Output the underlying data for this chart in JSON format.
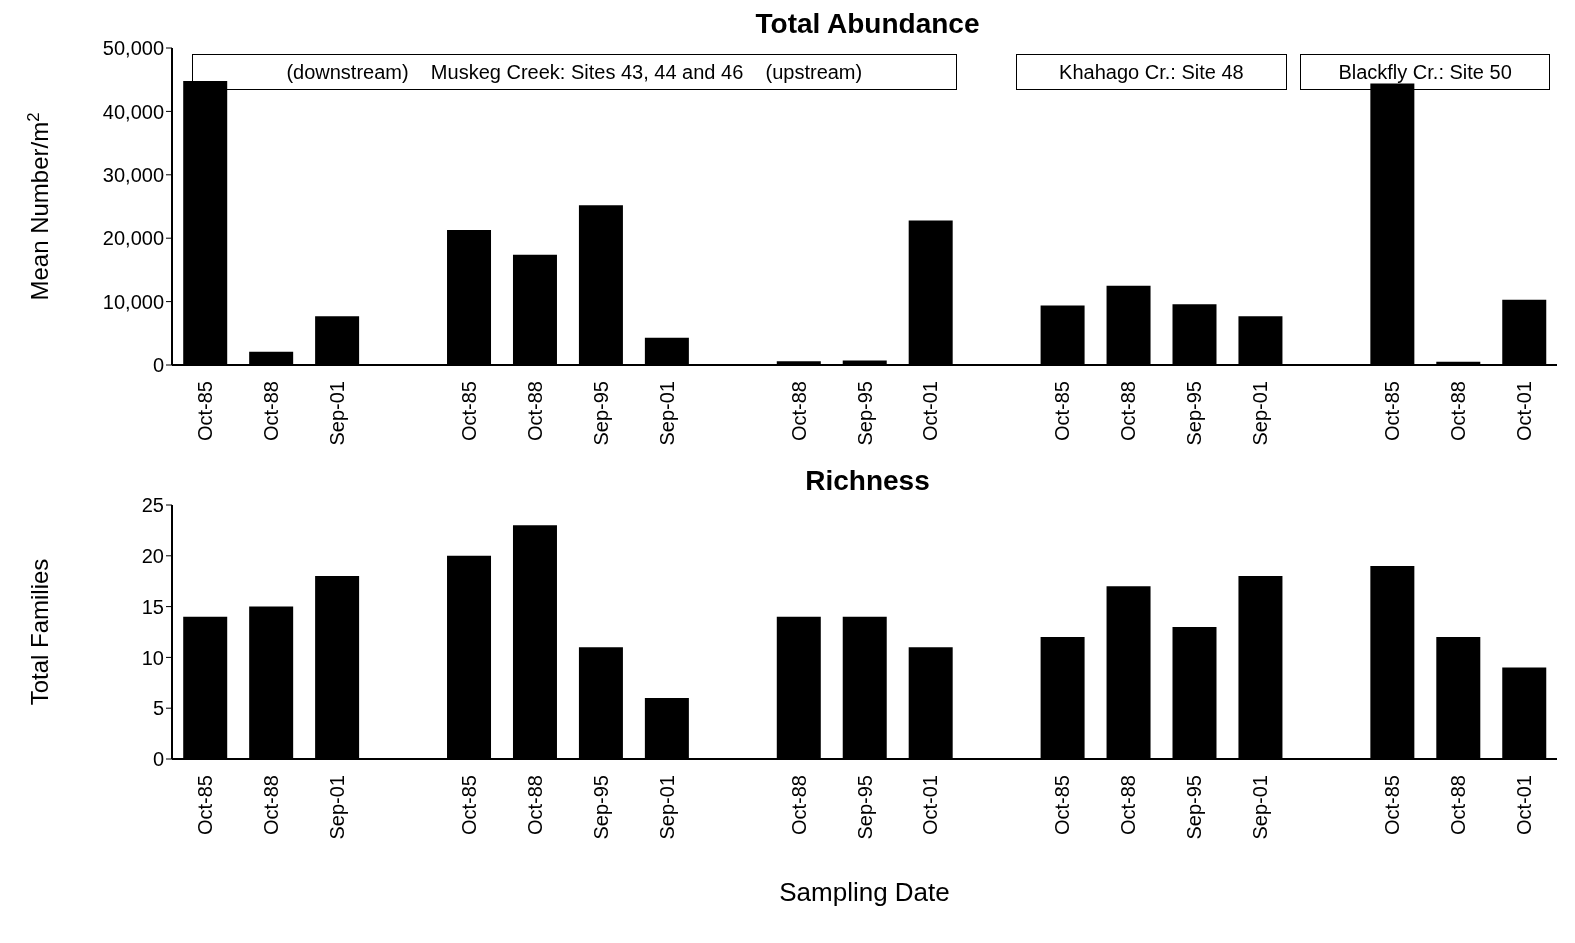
{
  "chart_data": [
    {
      "type": "bar",
      "title": "Total Abundance",
      "ylabel": "Mean Number/m$^{2}$",
      "categories": [
        "Oct-85",
        "Oct-88",
        "Sep-01",
        null,
        "Oct-85",
        "Oct-88",
        "Sep-95",
        "Sep-01",
        null,
        "Oct-88",
        "Sep-95",
        "Oct-01",
        null,
        "Oct-85",
        "Oct-88",
        "Sep-95",
        "Sep-01",
        null,
        "Oct-85",
        "Oct-88",
        "Oct-01"
      ],
      "values": [
        44800,
        2100,
        7700,
        null,
        21300,
        17400,
        25200,
        4300,
        null,
        600,
        700,
        22800,
        null,
        9400,
        12500,
        9600,
        7700,
        null,
        44400,
        500,
        10300
      ],
      "color": "#000000",
      "ylim": [
        0,
        50000
      ],
      "yticks": [
        {
          "value": 0,
          "label": "0"
        },
        {
          "value": 10000,
          "label": "10,000"
        },
        {
          "value": 20000,
          "label": "20,000"
        },
        {
          "value": 30000,
          "label": "30,000"
        },
        {
          "value": 40000,
          "label": "40,000"
        },
        {
          "value": 50000,
          "label": "50,000"
        }
      ],
      "grid": false,
      "annotations": [
        "(downstream)    Muskeg Creek: Sites 43, 44 and 46    (upstream)",
        "Khahago Cr.: Site 48",
        "Blackfly Cr.: Site 50"
      ]
    },
    {
      "type": "bar",
      "title": "Richness",
      "ylabel": "Total Families",
      "xlabel": "Sampling Date",
      "categories": [
        "Oct-85",
        "Oct-88",
        "Sep-01",
        null,
        "Oct-85",
        "Oct-88",
        "Sep-95",
        "Sep-01",
        null,
        "Oct-88",
        "Sep-95",
        "Oct-01",
        null,
        "Oct-85",
        "Oct-88",
        "Sep-95",
        "Sep-01",
        null,
        "Oct-85",
        "Oct-88",
        "Oct-01"
      ],
      "values": [
        14,
        15,
        18,
        null,
        20,
        23,
        11,
        6,
        null,
        14,
        14,
        11,
        null,
        12,
        17,
        13,
        18,
        null,
        19,
        12,
        9
      ],
      "color": "#000000",
      "ylim": [
        0,
        25
      ],
      "yticks": [
        0,
        5,
        10,
        15,
        20,
        25
      ],
      "grid": false
    }
  ]
}
